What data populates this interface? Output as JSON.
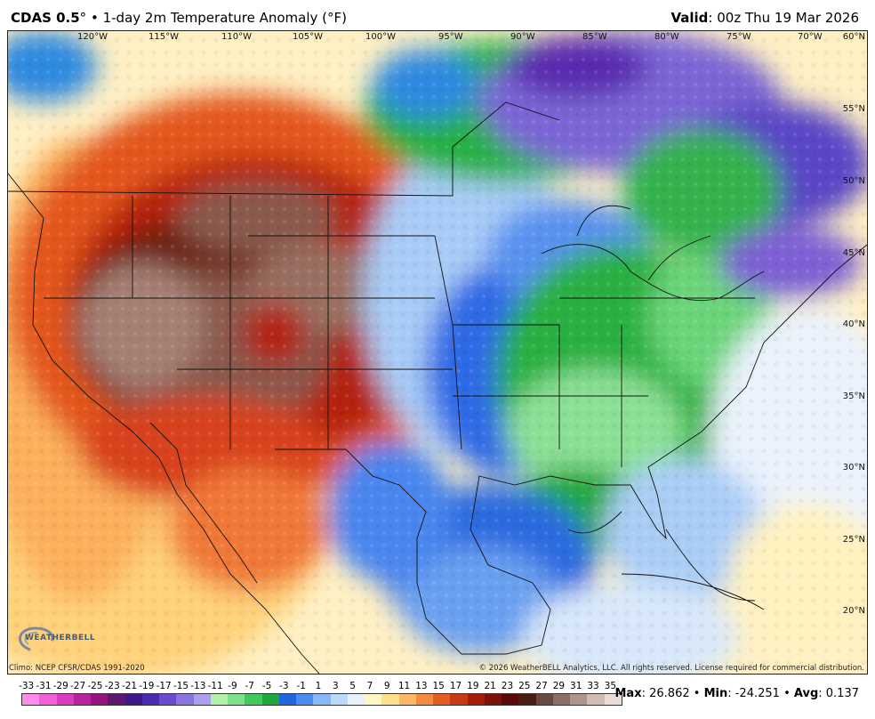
{
  "header": {
    "model": "CDAS 0.5",
    "degree": "°",
    "separator": "•",
    "product": "1-day 2m Temperature Anomaly (°F)",
    "valid_label": "Valid",
    "valid_time": ": 00z Thu 19 Mar 2026"
  },
  "map": {
    "lon_labels": [
      "120°W",
      "115°W",
      "110°W",
      "105°W",
      "100°W",
      "95°W",
      "90°W",
      "85°W",
      "80°W",
      "75°W",
      "70°W"
    ],
    "lat_labels": [
      "60°N",
      "55°N",
      "50°N",
      "45°N",
      "40°N",
      "35°N",
      "30°N",
      "25°N",
      "20°N"
    ]
  },
  "logo": {
    "text": "WEATHERBELL"
  },
  "credits": {
    "left": "Climo: NCEP CFSR/CDAS 1991-2020",
    "right": "© 2026 WeatherBELL Analytics, LLC. All rights reserved. License required for commercial distribution."
  },
  "colorbar": {
    "labels": [
      "-33",
      "-31",
      "-29",
      "-27",
      "-25",
      "-23",
      "-21",
      "-19",
      "-17",
      "-15",
      "-13",
      "-11",
      "-9",
      "-7",
      "-5",
      "-3",
      "-1",
      "1",
      "3",
      "5",
      "7",
      "9",
      "11",
      "13",
      "15",
      "17",
      "19",
      "21",
      "23",
      "25",
      "27",
      "29",
      "31",
      "33",
      "35"
    ],
    "colors": [
      "#ff8ce6",
      "#f060d6",
      "#d83cc0",
      "#b8249e",
      "#94167c",
      "#5e1870",
      "#3c1a8a",
      "#4a2cae",
      "#6a4ad0",
      "#8c74e0",
      "#aca0ec",
      "#b4f0a8",
      "#7ee08a",
      "#44c85a",
      "#1ca83e",
      "#1f66e0",
      "#4c8cf0",
      "#88b8f6",
      "#bcd8fa",
      "#e8f2fc",
      "#fff6c8",
      "#ffe08c",
      "#fcb864",
      "#f48c40",
      "#e45e24",
      "#c83a14",
      "#a41e0c",
      "#7e120a",
      "#5c0a08",
      "#4a1e16",
      "#6a4a40",
      "#8c6e64",
      "#ae948c",
      "#d0bcb4",
      "#eadcd4"
    ]
  },
  "stats": {
    "max_label": "Max",
    "max_value": ": 26.862",
    "min_label": "Min",
    "min_value": ": -24.251",
    "avg_label": "Avg",
    "avg_value": ": 0.137",
    "bullet": "•"
  }
}
